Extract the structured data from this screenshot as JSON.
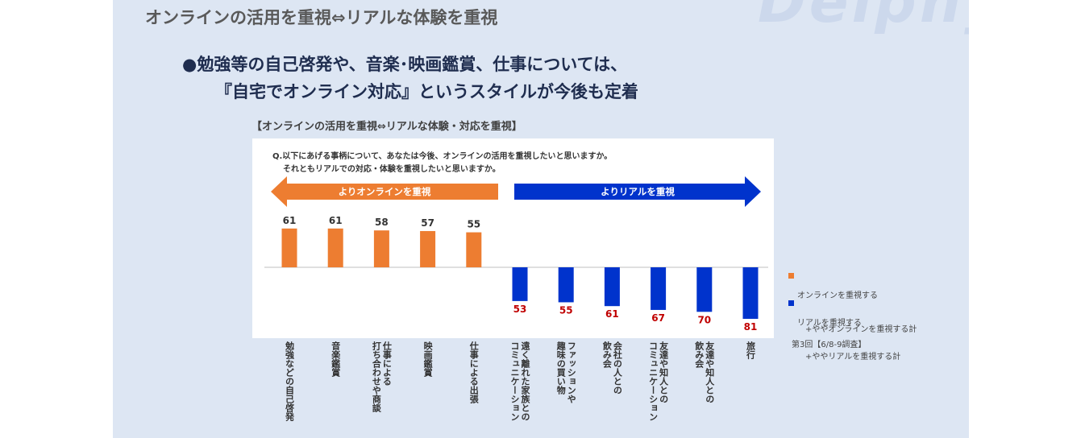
{
  "slide": {
    "title": "オンラインの活用を重視⇔リアルな体験を重視",
    "watermark": "Delphys",
    "headline_line1": "●勉強等の自己啓発や、音楽･映画鑑賞、仕事については、",
    "headline_line2": "『自宅でオンライン対応』というスタイルが今後も定着",
    "chart_caption": "【オンラインの活用を重視⇔リアルな体験・対応を重視】",
    "question_line1": "Q.以下にあげる事柄について、あなたは今後、オンラインの活用を重視したいと思いますか。",
    "question_line2": "それともリアルでの対応・体験を重視したいと思いますか。",
    "survey_note": "第3回【6/8-9調査】"
  },
  "colors": {
    "online": "#ed7d31",
    "real": "#0033cc",
    "real_value_text": "#c00000",
    "axis": "#bfbfbf"
  },
  "chart_data": {
    "type": "bar",
    "arrows": {
      "online": "よりオンラインを重視",
      "real": "よりリアルを重視"
    },
    "legend": [
      {
        "color_key": "online",
        "line1": "オンラインを重視する",
        "line2": "+ややオンラインを重視する計"
      },
      {
        "color_key": "real",
        "line1": "リアルを重視する",
        "line2": "+ややリアルを重視する計"
      }
    ],
    "categories": [
      "勉強などの自己啓発",
      "音楽鑑賞",
      "仕事による\n打ち合わせや商談",
      "映画鑑賞",
      "仕事による出張",
      "遠く離れた家族との\nコミュニケーション",
      "ファッションや\n趣味の買い物",
      "会社の人との\n飲み会",
      "友達や知人との\nコミュニケーション",
      "友達や知人との\n飲み会",
      "旅行"
    ],
    "series": [
      {
        "name": "オンラインを重視する+ややオンラインを重視する計",
        "direction": "up",
        "values": [
          61,
          61,
          58,
          57,
          55,
          null,
          null,
          null,
          null,
          null,
          null
        ]
      },
      {
        "name": "リアルを重視する+ややリアルを重視する計",
        "direction": "down",
        "values": [
          null,
          null,
          null,
          null,
          null,
          53,
          55,
          61,
          67,
          70,
          81
        ]
      }
    ]
  }
}
